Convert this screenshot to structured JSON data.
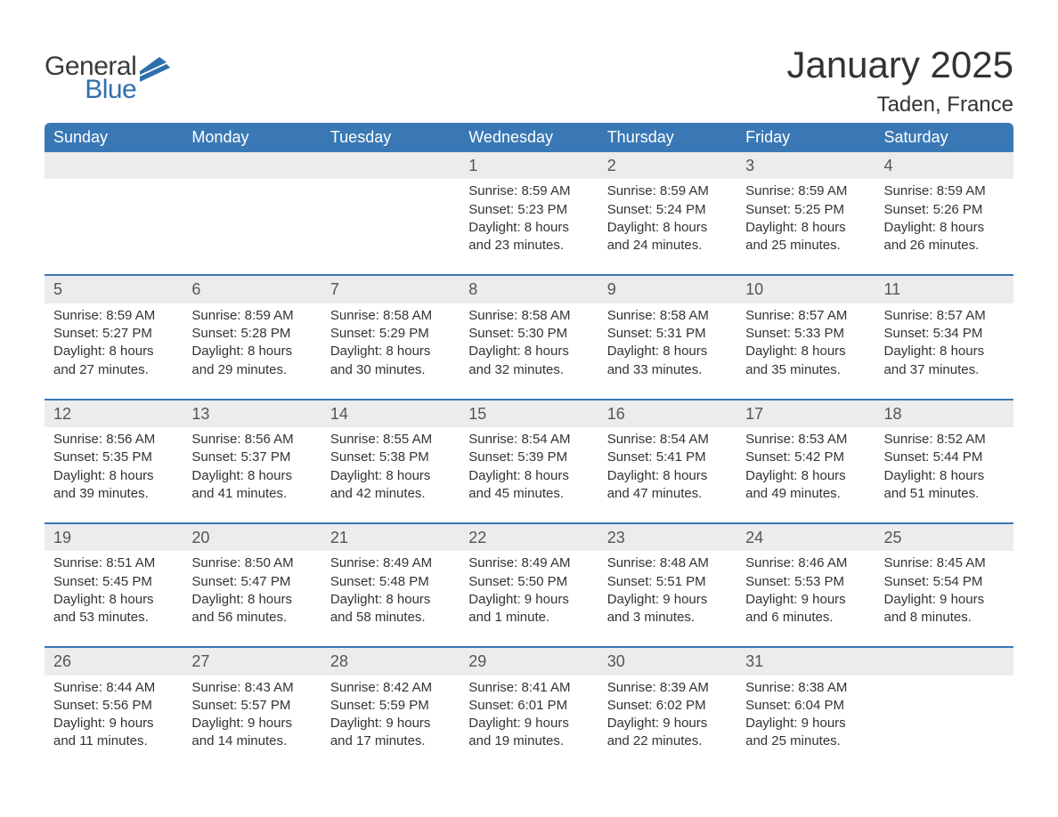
{
  "brand": {
    "word1": "General",
    "word2": "Blue",
    "flag_color": "#2f6fae"
  },
  "title": "January 2025",
  "location": "Taden, France",
  "colors": {
    "header_bg": "#3a78b5",
    "header_text": "#ffffff",
    "row_border": "#3a78b5",
    "daynum_bg": "#ececec",
    "text": "#333333",
    "page_bg": "#ffffff"
  },
  "typography": {
    "title_fontsize": 42,
    "location_fontsize": 24,
    "dayheader_fontsize": 18,
    "body_fontsize": 15
  },
  "day_headers": [
    "Sunday",
    "Monday",
    "Tuesday",
    "Wednesday",
    "Thursday",
    "Friday",
    "Saturday"
  ],
  "weeks": [
    [
      null,
      null,
      null,
      {
        "num": "1",
        "sunrise": "Sunrise: 8:59 AM",
        "sunset": "Sunset: 5:23 PM",
        "dl1": "Daylight: 8 hours",
        "dl2": "and 23 minutes."
      },
      {
        "num": "2",
        "sunrise": "Sunrise: 8:59 AM",
        "sunset": "Sunset: 5:24 PM",
        "dl1": "Daylight: 8 hours",
        "dl2": "and 24 minutes."
      },
      {
        "num": "3",
        "sunrise": "Sunrise: 8:59 AM",
        "sunset": "Sunset: 5:25 PM",
        "dl1": "Daylight: 8 hours",
        "dl2": "and 25 minutes."
      },
      {
        "num": "4",
        "sunrise": "Sunrise: 8:59 AM",
        "sunset": "Sunset: 5:26 PM",
        "dl1": "Daylight: 8 hours",
        "dl2": "and 26 minutes."
      }
    ],
    [
      {
        "num": "5",
        "sunrise": "Sunrise: 8:59 AM",
        "sunset": "Sunset: 5:27 PM",
        "dl1": "Daylight: 8 hours",
        "dl2": "and 27 minutes."
      },
      {
        "num": "6",
        "sunrise": "Sunrise: 8:59 AM",
        "sunset": "Sunset: 5:28 PM",
        "dl1": "Daylight: 8 hours",
        "dl2": "and 29 minutes."
      },
      {
        "num": "7",
        "sunrise": "Sunrise: 8:58 AM",
        "sunset": "Sunset: 5:29 PM",
        "dl1": "Daylight: 8 hours",
        "dl2": "and 30 minutes."
      },
      {
        "num": "8",
        "sunrise": "Sunrise: 8:58 AM",
        "sunset": "Sunset: 5:30 PM",
        "dl1": "Daylight: 8 hours",
        "dl2": "and 32 minutes."
      },
      {
        "num": "9",
        "sunrise": "Sunrise: 8:58 AM",
        "sunset": "Sunset: 5:31 PM",
        "dl1": "Daylight: 8 hours",
        "dl2": "and 33 minutes."
      },
      {
        "num": "10",
        "sunrise": "Sunrise: 8:57 AM",
        "sunset": "Sunset: 5:33 PM",
        "dl1": "Daylight: 8 hours",
        "dl2": "and 35 minutes."
      },
      {
        "num": "11",
        "sunrise": "Sunrise: 8:57 AM",
        "sunset": "Sunset: 5:34 PM",
        "dl1": "Daylight: 8 hours",
        "dl2": "and 37 minutes."
      }
    ],
    [
      {
        "num": "12",
        "sunrise": "Sunrise: 8:56 AM",
        "sunset": "Sunset: 5:35 PM",
        "dl1": "Daylight: 8 hours",
        "dl2": "and 39 minutes."
      },
      {
        "num": "13",
        "sunrise": "Sunrise: 8:56 AM",
        "sunset": "Sunset: 5:37 PM",
        "dl1": "Daylight: 8 hours",
        "dl2": "and 41 minutes."
      },
      {
        "num": "14",
        "sunrise": "Sunrise: 8:55 AM",
        "sunset": "Sunset: 5:38 PM",
        "dl1": "Daylight: 8 hours",
        "dl2": "and 42 minutes."
      },
      {
        "num": "15",
        "sunrise": "Sunrise: 8:54 AM",
        "sunset": "Sunset: 5:39 PM",
        "dl1": "Daylight: 8 hours",
        "dl2": "and 45 minutes."
      },
      {
        "num": "16",
        "sunrise": "Sunrise: 8:54 AM",
        "sunset": "Sunset: 5:41 PM",
        "dl1": "Daylight: 8 hours",
        "dl2": "and 47 minutes."
      },
      {
        "num": "17",
        "sunrise": "Sunrise: 8:53 AM",
        "sunset": "Sunset: 5:42 PM",
        "dl1": "Daylight: 8 hours",
        "dl2": "and 49 minutes."
      },
      {
        "num": "18",
        "sunrise": "Sunrise: 8:52 AM",
        "sunset": "Sunset: 5:44 PM",
        "dl1": "Daylight: 8 hours",
        "dl2": "and 51 minutes."
      }
    ],
    [
      {
        "num": "19",
        "sunrise": "Sunrise: 8:51 AM",
        "sunset": "Sunset: 5:45 PM",
        "dl1": "Daylight: 8 hours",
        "dl2": "and 53 minutes."
      },
      {
        "num": "20",
        "sunrise": "Sunrise: 8:50 AM",
        "sunset": "Sunset: 5:47 PM",
        "dl1": "Daylight: 8 hours",
        "dl2": "and 56 minutes."
      },
      {
        "num": "21",
        "sunrise": "Sunrise: 8:49 AM",
        "sunset": "Sunset: 5:48 PM",
        "dl1": "Daylight: 8 hours",
        "dl2": "and 58 minutes."
      },
      {
        "num": "22",
        "sunrise": "Sunrise: 8:49 AM",
        "sunset": "Sunset: 5:50 PM",
        "dl1": "Daylight: 9 hours",
        "dl2": "and 1 minute."
      },
      {
        "num": "23",
        "sunrise": "Sunrise: 8:48 AM",
        "sunset": "Sunset: 5:51 PM",
        "dl1": "Daylight: 9 hours",
        "dl2": "and 3 minutes."
      },
      {
        "num": "24",
        "sunrise": "Sunrise: 8:46 AM",
        "sunset": "Sunset: 5:53 PM",
        "dl1": "Daylight: 9 hours",
        "dl2": "and 6 minutes."
      },
      {
        "num": "25",
        "sunrise": "Sunrise: 8:45 AM",
        "sunset": "Sunset: 5:54 PM",
        "dl1": "Daylight: 9 hours",
        "dl2": "and 8 minutes."
      }
    ],
    [
      {
        "num": "26",
        "sunrise": "Sunrise: 8:44 AM",
        "sunset": "Sunset: 5:56 PM",
        "dl1": "Daylight: 9 hours",
        "dl2": "and 11 minutes."
      },
      {
        "num": "27",
        "sunrise": "Sunrise: 8:43 AM",
        "sunset": "Sunset: 5:57 PM",
        "dl1": "Daylight: 9 hours",
        "dl2": "and 14 minutes."
      },
      {
        "num": "28",
        "sunrise": "Sunrise: 8:42 AM",
        "sunset": "Sunset: 5:59 PM",
        "dl1": "Daylight: 9 hours",
        "dl2": "and 17 minutes."
      },
      {
        "num": "29",
        "sunrise": "Sunrise: 8:41 AM",
        "sunset": "Sunset: 6:01 PM",
        "dl1": "Daylight: 9 hours",
        "dl2": "and 19 minutes."
      },
      {
        "num": "30",
        "sunrise": "Sunrise: 8:39 AM",
        "sunset": "Sunset: 6:02 PM",
        "dl1": "Daylight: 9 hours",
        "dl2": "and 22 minutes."
      },
      {
        "num": "31",
        "sunrise": "Sunrise: 8:38 AM",
        "sunset": "Sunset: 6:04 PM",
        "dl1": "Daylight: 9 hours",
        "dl2": "and 25 minutes."
      },
      null
    ]
  ]
}
